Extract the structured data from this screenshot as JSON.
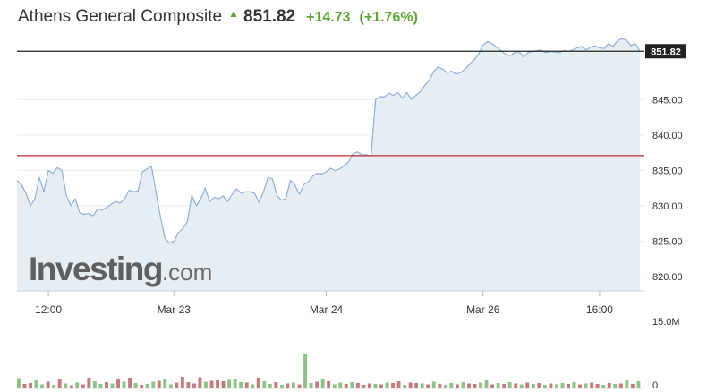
{
  "header": {
    "title": "Athens General Composite",
    "arrow": "▲",
    "price": "851.82",
    "change": "+14.73",
    "change_pct": "(+1.76%)"
  },
  "colors": {
    "line": "#8fb1d9",
    "area": "#e6edf3",
    "up": "#5aa832",
    "vol_up": "#8ac585",
    "vol_down": "#c8797d",
    "ref_line": "#c0282d",
    "last_line": "#222222",
    "last_badge": "#222222"
  },
  "watermark": {
    "brand": "Investing",
    "tld": ".com"
  },
  "chart_data": {
    "type": "line",
    "title": "Athens General Composite",
    "ylim": [
      818,
      854
    ],
    "yticks": [
      820,
      825,
      830,
      835,
      840,
      845
    ],
    "ytick_labels": [
      "820.00",
      "825.00",
      "830.00",
      "835.00",
      "840.00",
      "845.00"
    ],
    "last_value": 851.82,
    "last_label": "851.82",
    "reference_value": 837.09,
    "xlim": [
      0,
      140
    ],
    "xticks": [
      {
        "label": "12:00",
        "x": 7
      },
      {
        "label": "Mar 23",
        "x": 35
      },
      {
        "label": "Mar 24",
        "x": 69
      },
      {
        "label": "Mar 26",
        "x": 104
      },
      {
        "label": "16:00",
        "x": 130
      }
    ],
    "series": [
      {
        "x": [
          0,
          1,
          2,
          3,
          4,
          5,
          6,
          7,
          8,
          9,
          10,
          11,
          12,
          13,
          14,
          15,
          16,
          17,
          18,
          19,
          20,
          21,
          22,
          23,
          24,
          25,
          26,
          27,
          28,
          29,
          30,
          31,
          32,
          33,
          34,
          35,
          36,
          37,
          38,
          39,
          40,
          41,
          42,
          43,
          44,
          45,
          46,
          47,
          48,
          49,
          50,
          51,
          52,
          53,
          54,
          55,
          56,
          57,
          58,
          59,
          60,
          61,
          62,
          63,
          64,
          65,
          66,
          67,
          68,
          69,
          70,
          71,
          72,
          73,
          74,
          75,
          76,
          77,
          78,
          79,
          80,
          81,
          82,
          83,
          84,
          85,
          86,
          87,
          88,
          89,
          90,
          91,
          92,
          93,
          94,
          95,
          96,
          97,
          98,
          99,
          100,
          101,
          102,
          103,
          104,
          105,
          106,
          107,
          108,
          109,
          110,
          111,
          112,
          113,
          114,
          115,
          116,
          117,
          118,
          119,
          120,
          121,
          122,
          123,
          124,
          125,
          126,
          127,
          128,
          129,
          130,
          131,
          132,
          133,
          134,
          135,
          136,
          137,
          138,
          139
        ],
        "values": [
          833.6,
          833.0,
          831.8,
          830.0,
          831.0,
          834.0,
          832.0,
          835.0,
          834.6,
          835.4,
          835.0,
          831.5,
          830.0,
          831.0,
          829.0,
          828.8,
          828.9,
          828.6,
          829.6,
          829.4,
          829.8,
          830.2,
          830.6,
          830.4,
          831.0,
          832.2,
          832.0,
          832.1,
          834.8,
          835.2,
          835.6,
          832.0,
          828.5,
          825.5,
          824.7,
          825.0,
          826.2,
          826.8,
          827.8,
          831.5,
          830.0,
          831.0,
          832.5,
          830.6,
          831.2,
          831.0,
          831.4,
          830.6,
          831.6,
          832.4,
          831.8,
          832.0,
          832.0,
          831.8,
          830.5,
          832.0,
          834.0,
          833.8,
          831.5,
          830.8,
          831.0,
          833.6,
          833.0,
          831.6,
          833.0,
          833.4,
          834.2,
          834.6,
          834.5,
          834.8,
          835.3,
          835.0,
          835.2,
          835.7,
          836.2,
          837.4,
          837.6,
          837.2,
          837.2,
          837.0,
          845.0,
          845.4,
          845.4,
          845.9,
          845.6,
          846.0,
          845.2,
          846.0,
          845.0,
          845.6,
          846.1,
          847.0,
          847.8,
          849.0,
          849.6,
          849.3,
          848.8,
          849.0,
          848.6,
          848.8,
          849.3,
          850.0,
          850.6,
          851.4,
          852.7,
          853.2,
          852.9,
          852.4,
          851.9,
          851.4,
          851.2,
          851.6,
          851.8,
          851.0,
          851.6,
          851.8,
          851.9,
          852.0,
          851.6,
          851.8,
          851.7,
          851.6,
          851.9,
          851.8,
          852.0,
          852.3,
          852.5,
          852.0,
          852.4,
          852.6,
          852.3,
          852.2,
          852.9,
          852.5,
          853.3,
          853.6,
          853.4,
          852.6,
          852.9,
          851.82
        ]
      }
    ],
    "volume": {
      "ylim": [
        0,
        15
      ],
      "yticks": [
        0,
        15
      ],
      "ytick_labels": [
        "0",
        "15.0M"
      ],
      "values": [
        2.3,
        1.0,
        1.2,
        1.8,
        0.9,
        1.5,
        0.8,
        2.0,
        1.1,
        0.7,
        1.3,
        0.9,
        2.4,
        1.6,
        1.0,
        1.4,
        1.1,
        2.1,
        1.5,
        2.4,
        1.2,
        0.8,
        1.0,
        1.5,
        1.7,
        2.2,
        0.9,
        1.3,
        2.6,
        1.4,
        1.1,
        2.5,
        1.5,
        1.7,
        1.8,
        1.6,
        1.9,
        2.0,
        1.4,
        1.3,
        0.9,
        2.4,
        1.6,
        1.0,
        1.4,
        0.8,
        1.1,
        1.3,
        0.9,
        7.8,
        1.2,
        1.5,
        2.0,
        1.6,
        0.9,
        1.3,
        1.0,
        1.4,
        1.2,
        0.8,
        1.1,
        1.0,
        0.9,
        1.3,
        1.2,
        1.6,
        0.8,
        1.3,
        1.2,
        1.1,
        0.9,
        1.5,
        1.0,
        0.8,
        1.2,
        0.9,
        1.4,
        1.1,
        1.0,
        1.3,
        1.8,
        0.9,
        1.2,
        1.0,
        1.4,
        1.1,
        0.9,
        1.3,
        1.0,
        1.2,
        0.8,
        1.1,
        0.9,
        1.2,
        1.0,
        1.4,
        0.9,
        1.1,
        1.3,
        1.0,
        0.8,
        1.2,
        1.0,
        1.1,
        1.8,
        1.0,
        1.6
      ],
      "up": [
        true,
        false,
        false,
        true,
        true,
        false,
        true,
        false,
        true,
        false,
        true,
        false,
        false,
        true,
        true,
        false,
        true,
        false,
        true,
        false,
        true,
        false,
        true,
        true,
        false,
        true,
        true,
        false,
        false,
        false,
        false,
        false,
        true,
        false,
        false,
        false,
        true,
        true,
        true,
        false,
        true,
        false,
        true,
        true,
        false,
        true,
        false,
        true,
        false,
        true,
        true,
        false,
        true,
        false,
        true,
        true,
        false,
        true,
        false,
        false,
        false,
        true,
        false,
        true,
        false,
        false,
        true,
        false,
        false,
        true,
        false,
        true,
        false,
        true,
        true,
        false,
        true,
        false,
        false,
        true,
        true,
        false,
        true,
        false,
        true,
        false,
        true,
        false,
        true,
        false,
        true,
        false,
        true,
        true,
        false,
        true,
        false,
        true,
        false,
        false,
        true,
        false,
        true,
        false,
        true,
        false,
        true
      ]
    }
  }
}
